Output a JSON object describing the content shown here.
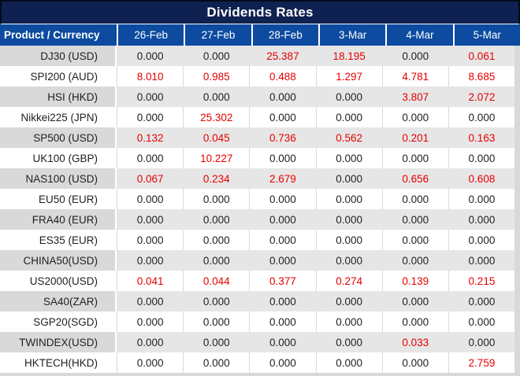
{
  "chart_data": {
    "type": "table",
    "title": "Dividends Rates",
    "columns": [
      "Product / Currency",
      "26-Feb",
      "27-Feb",
      "28-Feb",
      "3-Mar",
      "4-Mar",
      "5-Mar"
    ],
    "rows": [
      {
        "product": "DJ30 (USD)",
        "values": [
          "0.000",
          "0.000",
          "25.387",
          "18.195",
          "0.000",
          "0.061"
        ]
      },
      {
        "product": "SPI200 (AUD)",
        "values": [
          "8.010",
          "0.985",
          "0.488",
          "1.297",
          "4.781",
          "8.685"
        ]
      },
      {
        "product": "HSI (HKD)",
        "values": [
          "0.000",
          "0.000",
          "0.000",
          "0.000",
          "3.807",
          "2.072"
        ]
      },
      {
        "product": "Nikkei225 (JPN)",
        "values": [
          "0.000",
          "25.302",
          "0.000",
          "0.000",
          "0.000",
          "0.000"
        ]
      },
      {
        "product": "SP500 (USD)",
        "values": [
          "0.132",
          "0.045",
          "0.736",
          "0.562",
          "0.201",
          "0.163"
        ]
      },
      {
        "product": "UK100 (GBP)",
        "values": [
          "0.000",
          "10.227",
          "0.000",
          "0.000",
          "0.000",
          "0.000"
        ]
      },
      {
        "product": "NAS100 (USD)",
        "values": [
          "0.067",
          "0.234",
          "2.679",
          "0.000",
          "0.656",
          "0.608"
        ]
      },
      {
        "product": "EU50 (EUR)",
        "values": [
          "0.000",
          "0.000",
          "0.000",
          "0.000",
          "0.000",
          "0.000"
        ]
      },
      {
        "product": "FRA40 (EUR)",
        "values": [
          "0.000",
          "0.000",
          "0.000",
          "0.000",
          "0.000",
          "0.000"
        ]
      },
      {
        "product": "ES35 (EUR)",
        "values": [
          "0.000",
          "0.000",
          "0.000",
          "0.000",
          "0.000",
          "0.000"
        ]
      },
      {
        "product": "CHINA50(USD)",
        "values": [
          "0.000",
          "0.000",
          "0.000",
          "0.000",
          "0.000",
          "0.000"
        ]
      },
      {
        "product": "US2000(USD)",
        "values": [
          "0.041",
          "0.044",
          "0.377",
          "0.274",
          "0.139",
          "0.215"
        ]
      },
      {
        "product": "SA40(ZAR)",
        "values": [
          "0.000",
          "0.000",
          "0.000",
          "0.000",
          "0.000",
          "0.000"
        ]
      },
      {
        "product": "SGP20(SGD)",
        "values": [
          "0.000",
          "0.000",
          "0.000",
          "0.000",
          "0.000",
          "0.000"
        ]
      },
      {
        "product": "TWINDEX(USD)",
        "values": [
          "0.000",
          "0.000",
          "0.000",
          "0.000",
          "0.033",
          "0.000"
        ]
      },
      {
        "product": "HKTECH(HKD)",
        "values": [
          "0.000",
          "0.000",
          "0.000",
          "0.000",
          "0.000",
          "2.759"
        ]
      }
    ],
    "layout": {
      "zero_value_text": "0.000",
      "nonzero_values_highlighted": true,
      "row_striping": "alternating gray/white"
    },
    "colors": {
      "title_navy": "#0e2150",
      "header_blue": "#0c4ba0",
      "stripe_value_gray": "#e7e6e6",
      "stripe_label_gray": "#d9d9d9",
      "nonzero_red": "#e60000",
      "zero_black": "#1f1f1f",
      "header_text": "#ffffff"
    }
  }
}
